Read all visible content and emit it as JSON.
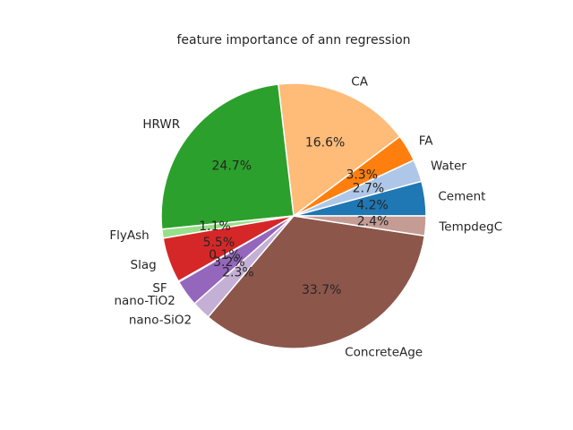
{
  "chart_data": {
    "type": "pie",
    "title": "feature importance of ann regression",
    "start_angle_deg": 0,
    "direction": "counterclockwise",
    "slices": [
      {
        "label": "Cement",
        "value": 4.2,
        "pct_label": "4.2%",
        "color": "#1f77b4"
      },
      {
        "label": "Water",
        "value": 2.7,
        "pct_label": "2.7%",
        "color": "#aec7e8"
      },
      {
        "label": "FA",
        "value": 3.3,
        "pct_label": "3.3%",
        "color": "#ff7f0e"
      },
      {
        "label": "CA",
        "value": 16.6,
        "pct_label": "16.6%",
        "color": "#ffbb78"
      },
      {
        "label": "HRWR",
        "value": 24.7,
        "pct_label": "24.7%",
        "color": "#2ca02c"
      },
      {
        "label": "FlyAsh",
        "value": 1.1,
        "pct_label": "1.1%",
        "color": "#98df8a"
      },
      {
        "label": "Slag",
        "value": 5.5,
        "pct_label": "5.5%",
        "color": "#d62728"
      },
      {
        "label": "SF",
        "value": 0.1,
        "pct_label": "0.1%",
        "color": "#ff9896"
      },
      {
        "label": "nano-TiO2",
        "value": 3.2,
        "pct_label": "3.2%",
        "color": "#9467bd"
      },
      {
        "label": "nano-SiO2",
        "value": 2.3,
        "pct_label": "2.3%",
        "color": "#c5b0d5"
      },
      {
        "label": "ConcreteAge",
        "value": 33.7,
        "pct_label": "33.7%",
        "color": "#8c564b"
      },
      {
        "label": "TempdegC",
        "value": 2.4,
        "pct_label": "2.4%",
        "color": "#c49c94"
      }
    ]
  }
}
